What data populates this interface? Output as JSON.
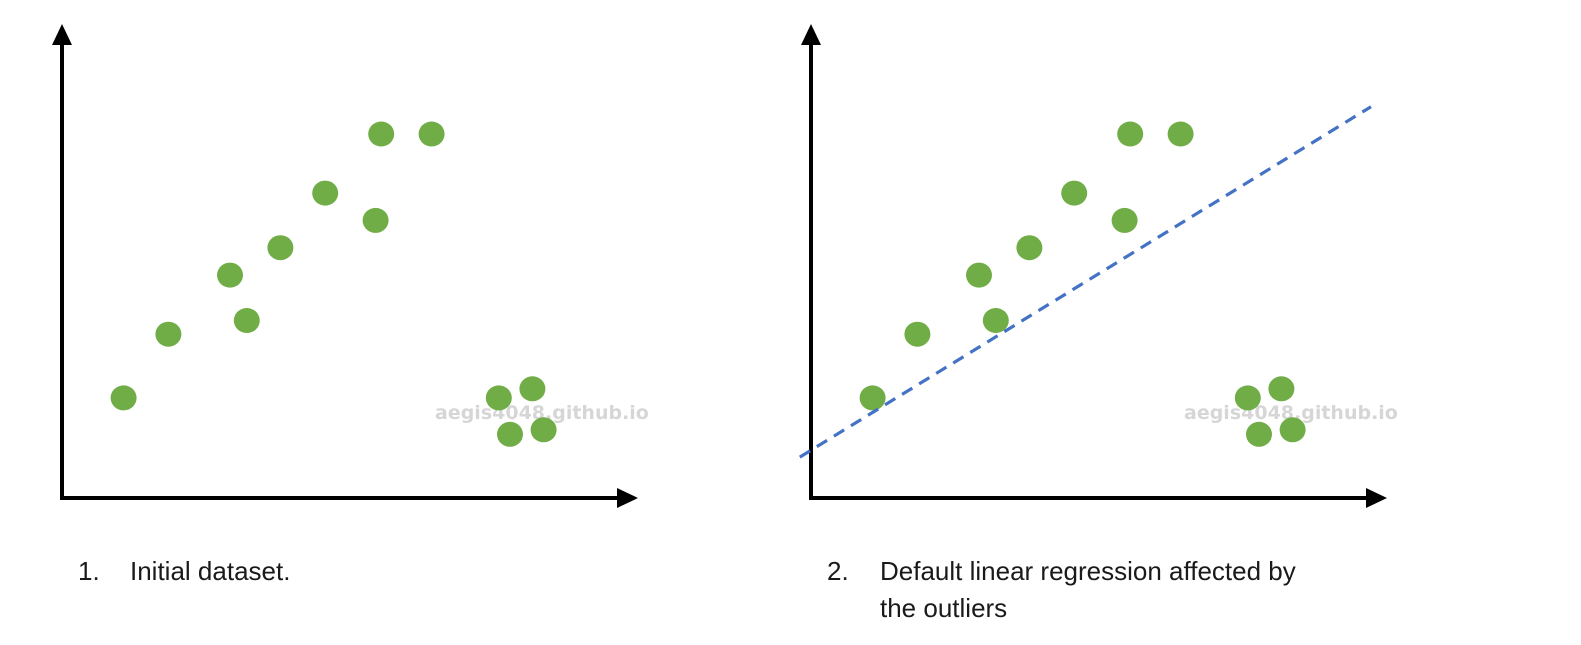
{
  "watermark": "aegis4048.github.io",
  "colors": {
    "point": "#70ad47",
    "regression_line": "#4472c4",
    "axis": "#000000"
  },
  "panels": [
    {
      "caption_number": "1.",
      "caption_lines": [
        "Initial dataset."
      ],
      "show_regression": false
    },
    {
      "caption_number": "2.",
      "caption_lines": [
        "Default linear regression affected by",
        "the outliers"
      ],
      "show_regression": true
    }
  ],
  "chart_data": {
    "type": "scatter",
    "points": [
      [
        0.11,
        0.22
      ],
      [
        0.19,
        0.36
      ],
      [
        0.3,
        0.49
      ],
      [
        0.33,
        0.39
      ],
      [
        0.39,
        0.55
      ],
      [
        0.47,
        0.67
      ],
      [
        0.56,
        0.61
      ],
      [
        0.57,
        0.8
      ],
      [
        0.66,
        0.8
      ],
      [
        0.78,
        0.22
      ],
      [
        0.84,
        0.24
      ],
      [
        0.8,
        0.14
      ],
      [
        0.86,
        0.15
      ]
    ],
    "regression_line": {
      "style": "dashed",
      "from": [
        -0.02,
        0.09
      ],
      "to": [
        1.0,
        0.86
      ]
    },
    "axes": {
      "x": [
        0,
        1
      ],
      "y": [
        0,
        1
      ],
      "ticks": false,
      "labels": false
    },
    "grid": false
  }
}
